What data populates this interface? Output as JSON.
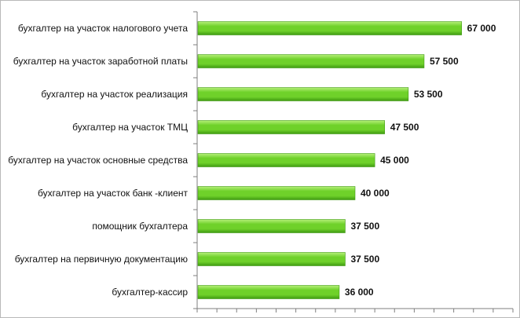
{
  "chart_data": {
    "type": "bar",
    "orientation": "horizontal",
    "categories": [
      "бухгалтер на участок налогового учета",
      "бухгалтер на участок заработной платы",
      "бухгалтер на участок реализация",
      "бухгалтер на участок ТМЦ",
      "бухгалтер на участок основные средства",
      "бухгалтер на участок банк -клиент",
      "помощник бухгалтера",
      "бухгалтер на первичную документацию",
      "бухгалтер-кассир"
    ],
    "values": [
      67000,
      57500,
      53500,
      47500,
      45000,
      40000,
      37500,
      37500,
      36000
    ],
    "value_labels": [
      "67 000",
      "57 500",
      "53 500",
      "47 500",
      "45 000",
      "40 000",
      "37 500",
      "37 500",
      "36 000"
    ],
    "xlim": [
      0,
      80000
    ],
    "title": "",
    "xlabel": "",
    "ylabel": "",
    "grid": false,
    "legend": "none",
    "colors": {
      "bar_dark": "#3f9a12",
      "bar_mid": "#6fd12a",
      "bar_light": "#b6f07a",
      "axis": "#7f7f7f"
    }
  }
}
